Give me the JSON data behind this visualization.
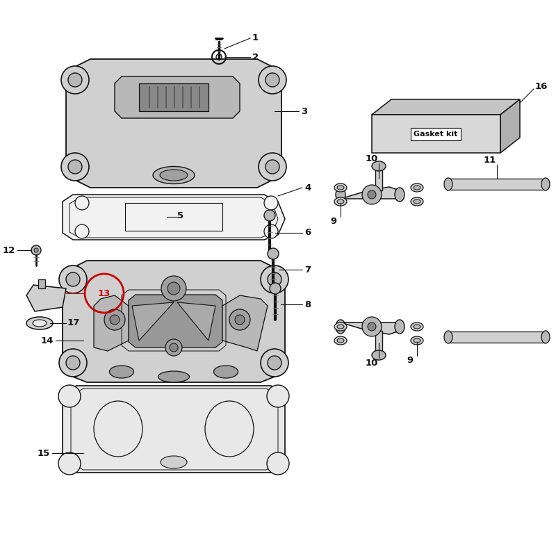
{
  "bg_color": "#ffffff",
  "lc": "#111111",
  "lc_red": "#cc0000",
  "fill_light": "#e8e8e8",
  "fill_mid": "#d0d0d0",
  "fill_dark": "#b8b8b8",
  "fill_darker": "#a0a0a0",
  "fill_gasket": "#f2f2f2",
  "label_fs": 9.5,
  "gasket_kit_text": "Gasket kit",
  "figsize": [
    8.0,
    8.0
  ],
  "dpi": 100
}
